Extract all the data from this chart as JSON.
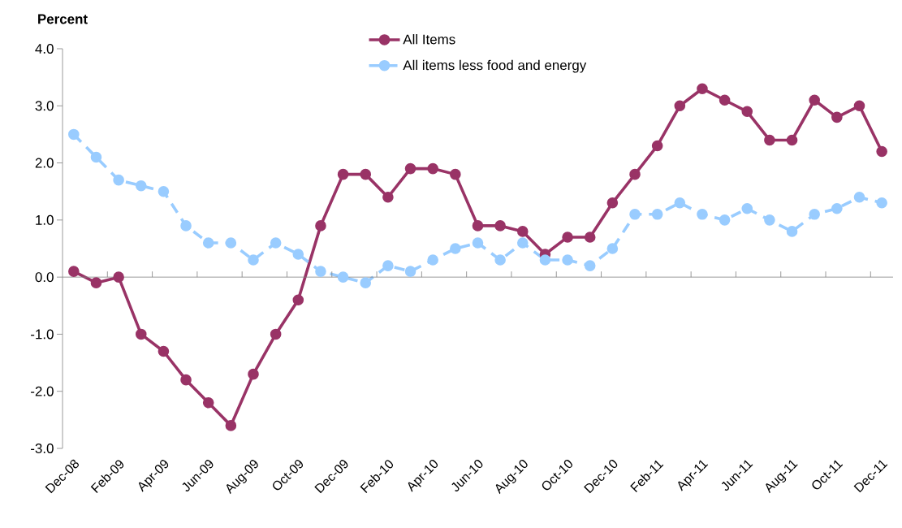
{
  "chart_data": {
    "type": "line",
    "ylabel": "Percent",
    "categories": [
      "Dec-08",
      null,
      "Feb-09",
      null,
      "Apr-09",
      null,
      "Jun-09",
      null,
      "Aug-09",
      null,
      "Oct-09",
      null,
      "Dec-09",
      null,
      "Feb-10",
      null,
      "Apr-10",
      null,
      "Jun-10",
      null,
      "Aug-10",
      null,
      "Oct-10",
      null,
      "Dec-10",
      null,
      "Feb-11",
      null,
      "Apr-11",
      null,
      "Jun-11",
      null,
      "Aug-11",
      null,
      "Oct-11",
      null,
      "Dec-11"
    ],
    "series": [
      {
        "name": "All Items",
        "color": "#993366",
        "line_style": "solid",
        "values": [
          0.1,
          -0.1,
          0.0,
          -1.0,
          -1.3,
          -1.8,
          -2.2,
          -2.6,
          -1.7,
          -1.0,
          -0.4,
          0.9,
          1.8,
          1.8,
          1.4,
          1.9,
          1.9,
          1.8,
          0.9,
          0.9,
          0.8,
          0.4,
          0.7,
          0.7,
          1.3,
          1.8,
          2.3,
          3.0,
          3.3,
          3.1,
          2.9,
          2.4,
          2.4,
          3.1,
          2.8,
          3.0,
          2.2
        ]
      },
      {
        "name": "All items less food and energy",
        "color": "#99ccff",
        "line_style": "dashed",
        "values": [
          2.5,
          2.1,
          1.7,
          1.6,
          1.5,
          0.9,
          0.6,
          0.6,
          0.3,
          0.6,
          0.4,
          0.1,
          0.0,
          -0.1,
          0.2,
          0.1,
          0.3,
          0.5,
          0.6,
          0.3,
          0.6,
          0.3,
          0.3,
          0.2,
          0.5,
          1.1,
          1.1,
          1.3,
          1.1,
          1.0,
          1.2,
          1.0,
          0.8,
          1.1,
          1.2,
          1.4,
          1.3
        ]
      }
    ],
    "ylim": [
      -3,
      4
    ],
    "yticks": [
      {
        "value": -3,
        "label": "-3.0"
      },
      {
        "value": -2,
        "label": "-2.0"
      },
      {
        "value": -1,
        "label": "-1.0"
      },
      {
        "value": 0,
        "label": "0.0"
      },
      {
        "value": 1,
        "label": "1.0"
      },
      {
        "value": 2,
        "label": "2.0"
      },
      {
        "value": 3,
        "label": "3.0"
      },
      {
        "value": 4,
        "label": "4.0"
      }
    ],
    "ref_lines": [
      {
        "axis": "y",
        "value": 0,
        "color": "#808080"
      }
    ],
    "grid": false,
    "legend": "top",
    "marker": "circle"
  }
}
